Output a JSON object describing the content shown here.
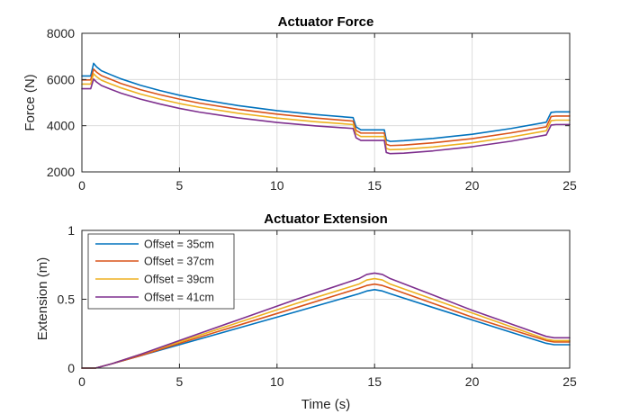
{
  "chart_data": [
    {
      "type": "line",
      "title": "Actuator Force",
      "xlabel": "",
      "ylabel": "Force (N)",
      "xlim": [
        0,
        25
      ],
      "ylim": [
        2000,
        8000
      ],
      "xticks": [
        0,
        5,
        10,
        15,
        20,
        25
      ],
      "yticks": [
        2000,
        4000,
        6000,
        8000
      ],
      "tick_labels_x": [
        "0",
        "5",
        "10",
        "15",
        "20",
        "25"
      ],
      "tick_labels_y": [
        "2000",
        "4000",
        "6000",
        "8000"
      ],
      "grid": true,
      "series": [
        {
          "name": "Offset = 35cm",
          "color": "#0072BD",
          "x": [
            0,
            0.45,
            0.6,
            0.75,
            1,
            1.5,
            2,
            3,
            4,
            5,
            6,
            8,
            10,
            12,
            13.9,
            14.05,
            14.3,
            15.5,
            15.6,
            15.8,
            16.5,
            18,
            20,
            22,
            23.8,
            24.05,
            24.3,
            25
          ],
          "y": [
            6150,
            6150,
            6700,
            6550,
            6380,
            6200,
            6030,
            5750,
            5520,
            5320,
            5150,
            4870,
            4650,
            4480,
            4350,
            3950,
            3820,
            3820,
            3380,
            3320,
            3350,
            3450,
            3630,
            3880,
            4150,
            4580,
            4600,
            4600
          ]
        },
        {
          "name": "Offset = 37cm",
          "color": "#D95319",
          "x": [
            0,
            0.45,
            0.6,
            0.75,
            1,
            1.5,
            2,
            3,
            4,
            5,
            6,
            8,
            10,
            12,
            13.9,
            14.05,
            14.3,
            15.5,
            15.6,
            15.8,
            16.5,
            18,
            20,
            22,
            23.8,
            24.05,
            24.3,
            25
          ],
          "y": [
            5980,
            5980,
            6450,
            6320,
            6170,
            6000,
            5830,
            5560,
            5340,
            5150,
            4980,
            4710,
            4500,
            4330,
            4200,
            3800,
            3680,
            3680,
            3200,
            3140,
            3160,
            3260,
            3440,
            3690,
            3950,
            4400,
            4420,
            4420
          ]
        },
        {
          "name": "Offset = 39cm",
          "color": "#EDB120",
          "x": [
            0,
            0.45,
            0.6,
            0.75,
            1,
            1.5,
            2,
            3,
            4,
            5,
            6,
            8,
            10,
            12,
            13.9,
            14.05,
            14.3,
            15.5,
            15.6,
            15.8,
            16.5,
            18,
            20,
            22,
            23.8,
            24.05,
            24.3,
            25
          ],
          "y": [
            5800,
            5800,
            6250,
            6120,
            5970,
            5800,
            5640,
            5370,
            5150,
            4960,
            4800,
            4540,
            4330,
            4170,
            4050,
            3650,
            3530,
            3530,
            3020,
            2960,
            2980,
            3080,
            3260,
            3510,
            3780,
            4220,
            4240,
            4240
          ]
        },
        {
          "name": "Offset = 41cm",
          "color": "#7E2F8E",
          "x": [
            0,
            0.45,
            0.6,
            0.75,
            1,
            1.5,
            2,
            3,
            4,
            5,
            6,
            8,
            10,
            12,
            13.9,
            14.05,
            14.3,
            15.5,
            15.6,
            15.8,
            16.5,
            18,
            20,
            22,
            23.8,
            24.05,
            24.3,
            25
          ],
          "y": [
            5600,
            5600,
            6020,
            5890,
            5740,
            5570,
            5410,
            5150,
            4940,
            4750,
            4590,
            4340,
            4140,
            3990,
            3880,
            3480,
            3360,
            3360,
            2840,
            2790,
            2810,
            2910,
            3090,
            3330,
            3600,
            4030,
            4050,
            4050
          ]
        }
      ]
    },
    {
      "type": "line",
      "title": "Actuator Extension",
      "xlabel": "Time (s)",
      "ylabel": "Extension (m)",
      "xlim": [
        0,
        25
      ],
      "ylim": [
        0,
        1
      ],
      "xticks": [
        0,
        5,
        10,
        15,
        20,
        25
      ],
      "yticks": [
        0,
        0.5,
        1
      ],
      "tick_labels_x": [
        "0",
        "5",
        "10",
        "15",
        "20",
        "25"
      ],
      "tick_labels_y": [
        "0",
        "0.5",
        "1"
      ],
      "grid": true,
      "legend": "top-left",
      "series": [
        {
          "name": "Offset = 35cm",
          "color": "#0072BD",
          "x": [
            0,
            0.7,
            1.5,
            3,
            5,
            8,
            11,
            14.2,
            14.6,
            15.0,
            15.4,
            15.8,
            18,
            20,
            22,
            23.8,
            24.2,
            25
          ],
          "y": [
            0,
            0,
            0.03,
            0.09,
            0.17,
            0.29,
            0.41,
            0.54,
            0.56,
            0.57,
            0.56,
            0.54,
            0.44,
            0.35,
            0.26,
            0.18,
            0.17,
            0.17
          ]
        },
        {
          "name": "Offset = 37cm",
          "color": "#D95319",
          "x": [
            0,
            0.7,
            1.5,
            3,
            5,
            8,
            11,
            14.2,
            14.6,
            15.0,
            15.4,
            15.8,
            18,
            20,
            22,
            23.8,
            24.2,
            25
          ],
          "y": [
            0,
            0,
            0.03,
            0.09,
            0.18,
            0.31,
            0.44,
            0.58,
            0.6,
            0.61,
            0.6,
            0.58,
            0.47,
            0.37,
            0.28,
            0.2,
            0.19,
            0.19
          ]
        },
        {
          "name": "Offset = 39cm",
          "color": "#EDB120",
          "x": [
            0,
            0.7,
            1.5,
            3,
            5,
            8,
            11,
            14.2,
            14.6,
            15.0,
            15.4,
            15.8,
            18,
            20,
            22,
            23.8,
            24.2,
            25
          ],
          "y": [
            0,
            0,
            0.03,
            0.1,
            0.19,
            0.33,
            0.47,
            0.61,
            0.64,
            0.65,
            0.64,
            0.61,
            0.5,
            0.4,
            0.3,
            0.21,
            0.2,
            0.2
          ]
        },
        {
          "name": "Offset = 41cm",
          "color": "#7E2F8E",
          "x": [
            0,
            0.7,
            1.5,
            3,
            5,
            8,
            11,
            14.2,
            14.6,
            15.0,
            15.4,
            15.8,
            18,
            20,
            22,
            23.8,
            24.2,
            25
          ],
          "y": [
            0,
            0,
            0.03,
            0.1,
            0.2,
            0.35,
            0.5,
            0.65,
            0.68,
            0.69,
            0.68,
            0.65,
            0.53,
            0.42,
            0.32,
            0.23,
            0.22,
            0.22
          ]
        }
      ]
    }
  ]
}
